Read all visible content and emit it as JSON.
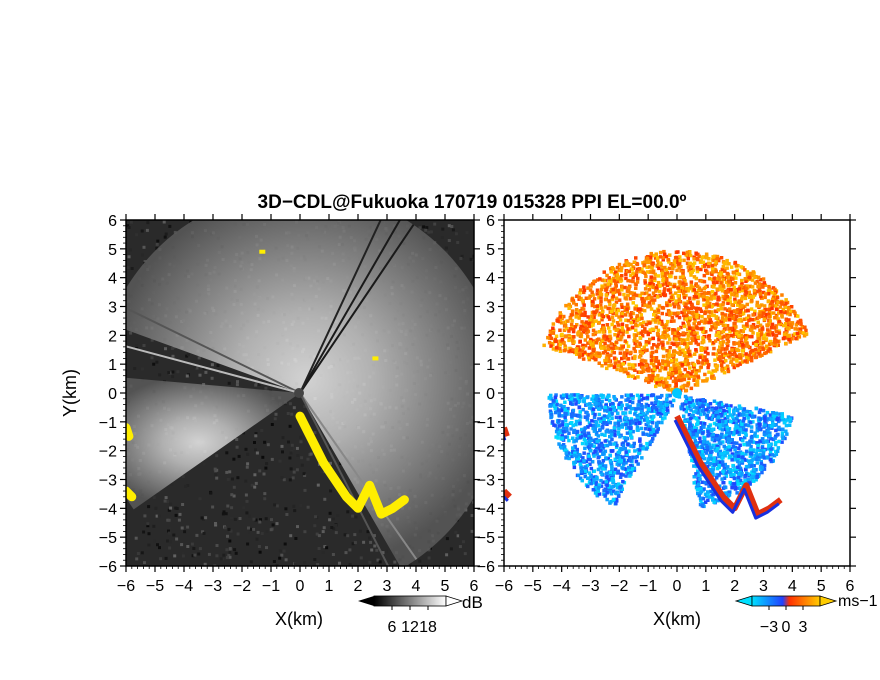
{
  "title": "3D−CDL@Fukuoka 170719 015328 PPI EL=00.0º",
  "chart_data": [
    {
      "type": "heatmap",
      "panel": "intensity",
      "xlabel": "X(km)",
      "ylabel": "Y(km)",
      "xlim": [
        -6,
        6
      ],
      "ylim": [
        -6,
        6
      ],
      "x_ticks": [
        "−6",
        "−5",
        "−4",
        "−3",
        "−2",
        "−1",
        "0",
        "1",
        "2",
        "3",
        "4",
        "5",
        "6"
      ],
      "y_ticks": [
        "−6",
        "−5",
        "−4",
        "−3",
        "−2",
        "−1",
        "0",
        "1",
        "2",
        "3",
        "4",
        "5",
        "6"
      ],
      "colorbar": {
        "label": "dB",
        "ticks": [
          "6",
          "12",
          "18"
        ],
        "range": [
          0,
          24
        ]
      },
      "highlight_color": "#ffee00",
      "highlight_regions": [
        {
          "x": [
            0.0,
            0.4,
            0.8,
            1.2,
            1.6,
            2.0,
            2.4,
            2.8,
            3.2,
            3.6
          ],
          "y": [
            -0.8,
            -1.6,
            -2.4,
            -3.0,
            -3.6,
            -4.0,
            -3.2,
            -4.2,
            -4.0,
            -3.7
          ]
        },
        {
          "x": [
            -6.0,
            -5.8
          ],
          "y": [
            -3.4,
            -3.6
          ]
        },
        {
          "x": [
            -6.0,
            -5.9
          ],
          "y": [
            -1.2,
            -1.5
          ]
        },
        {
          "x": [
            2.6
          ],
          "y": [
            1.2
          ]
        },
        {
          "x": [
            -1.3
          ],
          "y": [
            4.9
          ]
        }
      ]
    },
    {
      "type": "heatmap",
      "panel": "doppler_velocity",
      "xlabel": "X(km)",
      "xlim": [
        -6,
        6
      ],
      "ylim": [
        -6,
        6
      ],
      "x_ticks": [
        "−6",
        "−5",
        "−4",
        "−3",
        "−2",
        "−1",
        "0",
        "1",
        "2",
        "3",
        "4",
        "5",
        "6"
      ],
      "y_ticks": [
        "−6",
        "−5",
        "−4",
        "−3",
        "−2",
        "−1",
        "0",
        "1",
        "2",
        "3",
        "4",
        "5",
        "6"
      ],
      "colorbar": {
        "label": "ms−1",
        "ticks": [
          "−3",
          "0",
          "3"
        ],
        "range": [
          -6,
          6
        ]
      },
      "colors": {
        "toward": [
          "#00e0ff",
          "#2040ff"
        ],
        "away": [
          "#ff3000",
          "#ffcc00"
        ]
      },
      "sectors": [
        {
          "from_deg": 25,
          "to_deg": 160,
          "velocity": 3.5,
          "max_range_km": 5.0
        },
        {
          "from_deg": 180,
          "to_deg": 240,
          "velocity": -2.5,
          "max_range_km": 4.5
        },
        {
          "from_deg": 280,
          "to_deg": 350,
          "velocity": -1.5,
          "max_range_km": 4.0
        }
      ]
    }
  ]
}
